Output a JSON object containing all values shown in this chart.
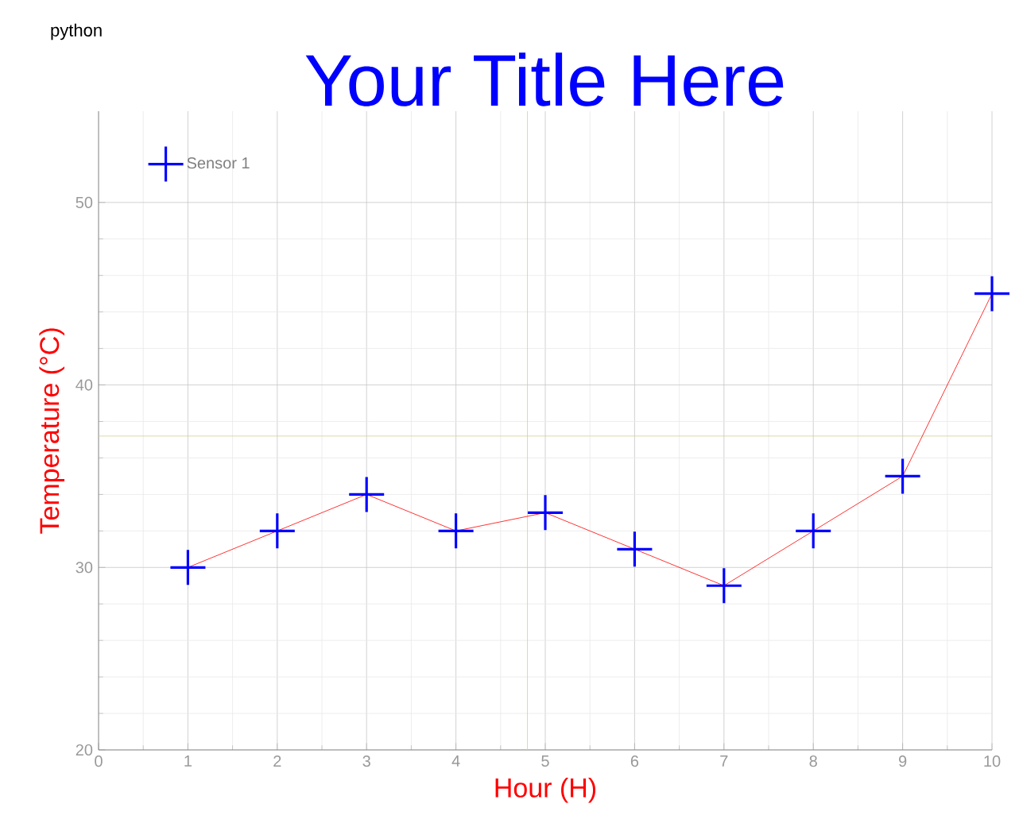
{
  "chart_data": {
    "type": "line",
    "title": "Your Title Here",
    "xlabel": "Hour (H)",
    "ylabel": "Temperature (°C)",
    "annotations": [
      "python"
    ],
    "x": [
      1,
      2,
      3,
      4,
      5,
      6,
      7,
      8,
      9,
      10
    ],
    "series": [
      {
        "color": "#ff0000",
        "marker": "none",
        "values": [
          30,
          32,
          34,
          32,
          33,
          31,
          29,
          32,
          35,
          45
        ]
      },
      {
        "name": "Sensor 1",
        "type": "scatter",
        "color": "#0000ff",
        "values": [
          30,
          32,
          34,
          32,
          33,
          31,
          29,
          32,
          35,
          45
        ]
      }
    ],
    "xlim": [
      0,
      10
    ],
    "ylim": [
      20,
      55
    ],
    "xticks": [
      0,
      1,
      2,
      3,
      4,
      5,
      6,
      7,
      8,
      9,
      10
    ],
    "yticks": [
      20,
      30,
      40,
      50
    ],
    "ref_lines": [
      {
        "axis": "x",
        "value": 4.8,
        "color": "#d2d28c"
      },
      {
        "axis": "y",
        "value": 37.2,
        "color": "#d2d28c"
      }
    ],
    "grid": true,
    "legend": "top left",
    "marker": "cross",
    "line_style": "solid"
  }
}
